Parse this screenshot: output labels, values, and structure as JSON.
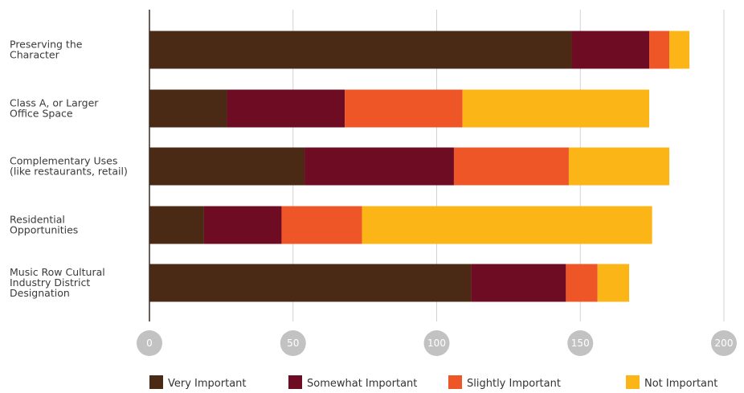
{
  "chart_data": {
    "type": "bar",
    "orientation": "horizontal",
    "stacked": true,
    "categories": [
      [
        "Preserving the",
        "Character"
      ],
      [
        "Class A, or Larger",
        "Office Space"
      ],
      [
        "Complementary Uses",
        "(like restaurants, retail)"
      ],
      [
        "Residential",
        "Opportunities"
      ],
      [
        "Music Row Cultural",
        "Industry District",
        "Designation"
      ]
    ],
    "series": [
      {
        "name": "Very Important",
        "color": "#4a2a14",
        "values": [
          147,
          27,
          54,
          19,
          112
        ]
      },
      {
        "name": "Somewhat Important",
        "color": "#6d0c22",
        "values": [
          27,
          41,
          52,
          27,
          33
        ]
      },
      {
        "name": "Slightly Important",
        "color": "#ee5527",
        "values": [
          7,
          41,
          40,
          28,
          11
        ]
      },
      {
        "name": "Not Important",
        "color": "#fbb516",
        "values": [
          7,
          65,
          35,
          101,
          11
        ]
      }
    ],
    "xlim": [
      0,
      200
    ],
    "xticks": [
      0,
      50,
      100,
      150,
      200
    ],
    "grid": true,
    "legend_position": "bottom"
  }
}
